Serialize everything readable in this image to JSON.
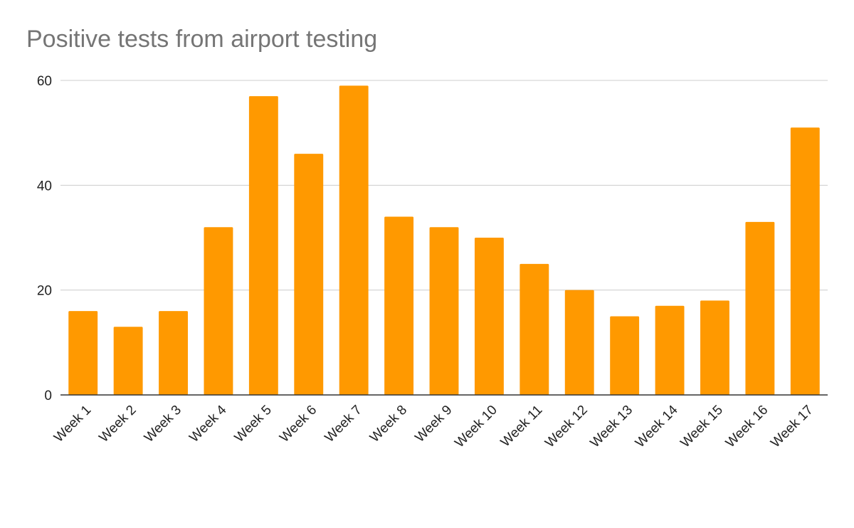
{
  "chart_data": {
    "type": "bar",
    "title": "Positive tests from airport testing",
    "xlabel": "",
    "ylabel": "",
    "categories": [
      "Week 1",
      "Week 2",
      "Week 3",
      "Week 4",
      "Week 5",
      "Week 6",
      "Week 7",
      "Week 8",
      "Week 9",
      "Week 10",
      "Week 11",
      "Week 12",
      "Week 13",
      "Week 14",
      "Week 15",
      "Week 16",
      "Week 17"
    ],
    "values": [
      16,
      13,
      16,
      32,
      57,
      46,
      59,
      34,
      32,
      30,
      25,
      20,
      15,
      17,
      18,
      33,
      51
    ],
    "ylim": [
      0,
      60
    ],
    "yticks": [
      0,
      20,
      40,
      60
    ],
    "grid": true,
    "legend": "none",
    "colors": {
      "bar": "#ff9900",
      "grid": "#cccccc",
      "axis": "#333333",
      "title": "#757575"
    }
  }
}
